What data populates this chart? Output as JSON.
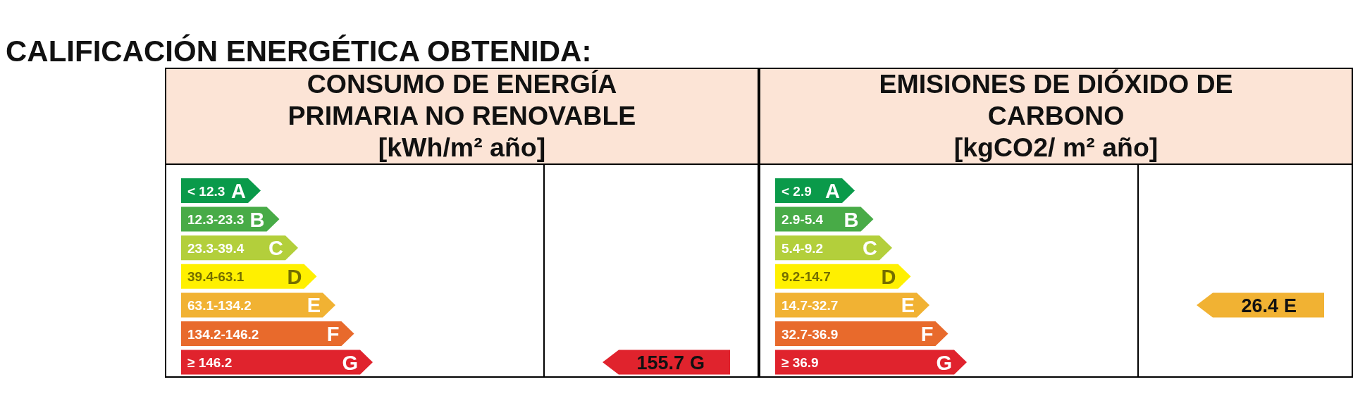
{
  "chart_data": [
    {
      "type": "other",
      "annotations": [
        "CALIFICACIÓN ENERGÉTICA OBTENIDA:"
      ],
      "title": "CONSUMO DE ENERGÍA PRIMARIA NO RENOVABLE",
      "subtitle": "[kWh/m² año]",
      "categories": [
        "A",
        "B",
        "C",
        "D",
        "E",
        "F",
        "G"
      ],
      "y_categories": [
        "< 12.3",
        "12.3-23.3",
        "23.3-39.4",
        "39.4-63.1",
        "63.1-134.2",
        "134.2-146.2",
        "≥ 146.2"
      ],
      "colors": [
        "#0a9a4a",
        "#48ab47",
        "#b3cf3b",
        "#fff000",
        "#f1b233",
        "#e86a2c",
        "#e0232d"
      ],
      "values": [
        null,
        null,
        null,
        null,
        null,
        null,
        155.7
      ],
      "data_labels": true
    },
    {
      "type": "other",
      "title": "EMISIONES DE DIÓXIDO DE CARBONO",
      "subtitle": "[kgCO2/ m² año]",
      "categories": [
        "A",
        "B",
        "C",
        "D",
        "E",
        "F",
        "G"
      ],
      "y_categories": [
        "< 2.9",
        "2.9-5.4",
        "5.4-9.2",
        "9.2-14.7",
        "14.7-32.7",
        "32.7-36.9",
        "≥ 36.9"
      ],
      "colors": [
        "#0a9a4a",
        "#48ab47",
        "#b3cf3b",
        "#fff000",
        "#f1b233",
        "#e86a2c",
        "#e0232d"
      ],
      "values": [
        null,
        null,
        null,
        null,
        26.4,
        null,
        null
      ],
      "data_labels": true
    }
  ]
}
